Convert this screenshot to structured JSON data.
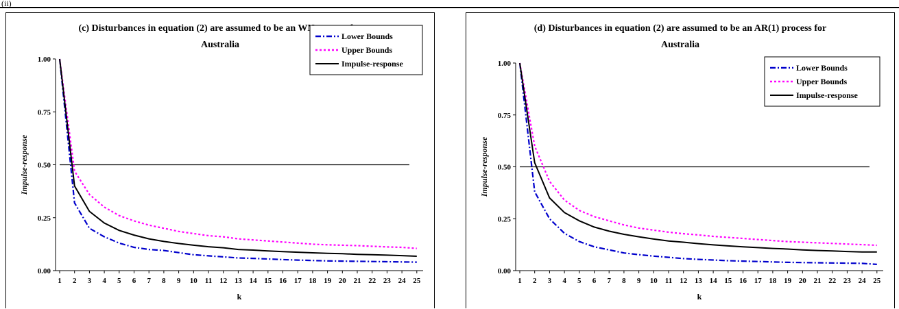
{
  "header": {
    "label": "(ii)"
  },
  "chart_data": [
    {
      "type": "line",
      "title": "(c) Disturbances in equation (2) are assumed to be an WN process for Australia",
      "title_lines": [
        "(c) Disturbances in equation (2) are assumed to be an WN process for",
        "Australia"
      ],
      "xlabel": "k",
      "ylabel": "Impulse-response",
      "ylim": [
        0,
        1
      ],
      "yticks": [
        "0.00",
        "0.25",
        "0.50",
        "0.75",
        "1.00"
      ],
      "x": [
        1,
        2,
        3,
        4,
        5,
        6,
        7,
        8,
        9,
        10,
        11,
        12,
        13,
        14,
        15,
        16,
        17,
        18,
        19,
        20,
        21,
        22,
        23,
        24,
        25
      ],
      "legend_position": "top-right",
      "reference_line": 0.5,
      "series": [
        {
          "name": "Lower Bounds",
          "color": "#0000CC",
          "style": "dashdot",
          "values": [
            1.0,
            0.32,
            0.2,
            0.16,
            0.13,
            0.11,
            0.1,
            0.095,
            0.085,
            0.075,
            0.07,
            0.065,
            0.06,
            0.058,
            0.055,
            0.052,
            0.05,
            0.048,
            0.046,
            0.045,
            0.044,
            0.043,
            0.042,
            0.041,
            0.04
          ]
        },
        {
          "name": "Upper Bounds",
          "color": "#FF00FF",
          "style": "dot",
          "values": [
            1.0,
            0.47,
            0.36,
            0.3,
            0.26,
            0.235,
            0.215,
            0.2,
            0.185,
            0.175,
            0.165,
            0.16,
            0.15,
            0.145,
            0.14,
            0.135,
            0.13,
            0.125,
            0.122,
            0.12,
            0.118,
            0.115,
            0.112,
            0.11,
            0.105
          ]
        },
        {
          "name": "Impulse-response",
          "color": "#000000",
          "style": "solid",
          "values": [
            1.0,
            0.4,
            0.28,
            0.225,
            0.19,
            0.168,
            0.15,
            0.138,
            0.128,
            0.12,
            0.113,
            0.108,
            0.1,
            0.097,
            0.093,
            0.09,
            0.087,
            0.084,
            0.082,
            0.08,
            0.077,
            0.075,
            0.073,
            0.071,
            0.068
          ]
        }
      ]
    },
    {
      "type": "line",
      "title": "(d) Disturbances in equation (2) are assumed to be an AR(1) process for Australia",
      "title_lines": [
        "(d) Disturbances in equation (2) are assumed to be an AR(1) process for",
        "Australia"
      ],
      "xlabel": "k",
      "ylabel": "Impulse-response",
      "ylim": [
        0,
        1
      ],
      "yticks": [
        "0.00",
        "0.25",
        "0.50",
        "0.75",
        "1.00"
      ],
      "x": [
        1,
        2,
        3,
        4,
        5,
        6,
        7,
        8,
        9,
        10,
        11,
        12,
        13,
        14,
        15,
        16,
        17,
        18,
        19,
        20,
        21,
        22,
        23,
        24,
        25
      ],
      "legend_position": "top-right",
      "reference_line": 0.5,
      "series": [
        {
          "name": "Lower Bounds",
          "color": "#0000CC",
          "style": "dashdot",
          "values": [
            1.0,
            0.38,
            0.25,
            0.18,
            0.14,
            0.115,
            0.1,
            0.085,
            0.077,
            0.07,
            0.064,
            0.058,
            0.054,
            0.051,
            0.048,
            0.046,
            0.044,
            0.042,
            0.04,
            0.039,
            0.038,
            0.037,
            0.036,
            0.035,
            0.03
          ]
        },
        {
          "name": "Upper Bounds",
          "color": "#FF00FF",
          "style": "dot",
          "values": [
            1.0,
            0.6,
            0.43,
            0.34,
            0.29,
            0.26,
            0.24,
            0.22,
            0.205,
            0.195,
            0.185,
            0.178,
            0.172,
            0.165,
            0.16,
            0.155,
            0.15,
            0.145,
            0.14,
            0.137,
            0.134,
            0.131,
            0.128,
            0.125,
            0.122
          ]
        },
        {
          "name": "Impulse-response",
          "color": "#000000",
          "style": "solid",
          "values": [
            1.0,
            0.52,
            0.35,
            0.28,
            0.24,
            0.21,
            0.19,
            0.175,
            0.163,
            0.152,
            0.143,
            0.137,
            0.13,
            0.124,
            0.119,
            0.115,
            0.111,
            0.107,
            0.104,
            0.1,
            0.097,
            0.095,
            0.092,
            0.09,
            0.09
          ]
        }
      ]
    }
  ]
}
